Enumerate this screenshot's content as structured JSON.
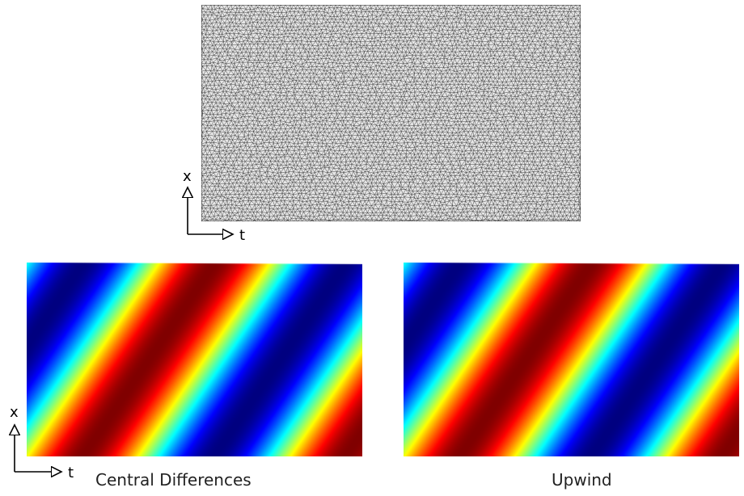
{
  "axes": {
    "x_label": "x",
    "t_label": "t"
  },
  "panels": [
    {
      "id": "mesh",
      "type": "triangular-mesh"
    },
    {
      "id": "central",
      "caption": "Central Differences",
      "type": "colormap"
    },
    {
      "id": "upwind",
      "caption": "Upwind",
      "type": "colormap"
    }
  ],
  "colormap": "jet",
  "colors": {
    "mesh_background": "#e6e6e6",
    "mesh_lines": "#303030",
    "axis": "#000000"
  }
}
